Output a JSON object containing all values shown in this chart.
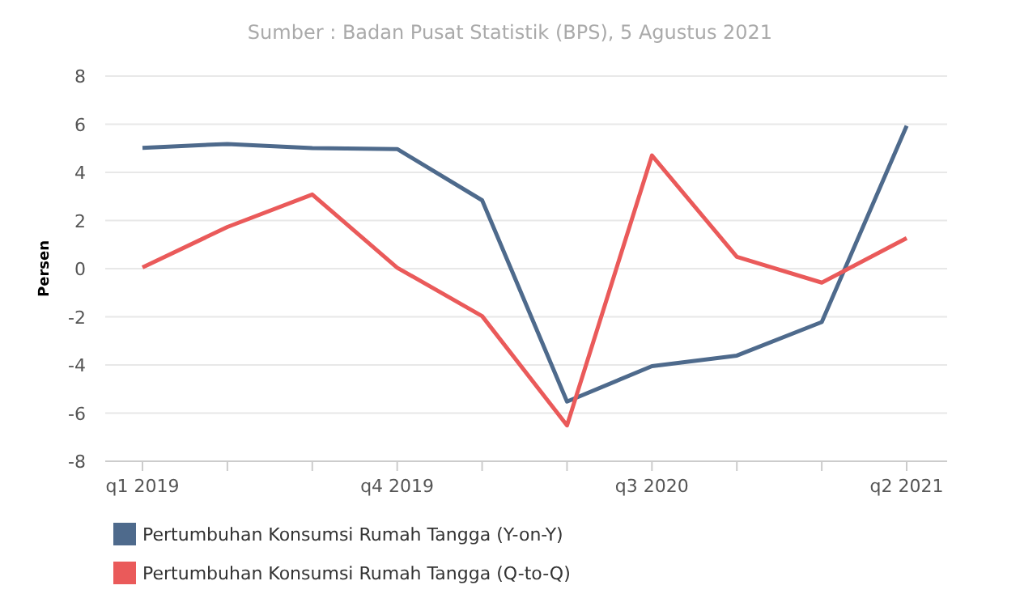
{
  "chart_data": {
    "type": "line",
    "subtitle": "Sumber : Badan Pusat Statistik (BPS), 5 Agustus 2021",
    "ylabel": "Persen",
    "categories": [
      "q1 2019",
      null,
      null,
      "q4 2019",
      null,
      null,
      "q3 2020",
      null,
      null,
      "q2 2021"
    ],
    "series": [
      {
        "name": "Pertumbuhan Konsumsi Rumah Tangga (Y-on-Y)",
        "color": "#4e6a8c",
        "values": [
          5.02,
          5.18,
          5.01,
          4.97,
          2.84,
          -5.52,
          -4.05,
          -3.61,
          -2.22,
          5.93
        ]
      },
      {
        "name": "Pertumbuhan Konsumsi Rumah Tangga (Q-to-Q)",
        "color": "#ea5a5a",
        "values": [
          0.05,
          1.73,
          3.08,
          0.04,
          -1.97,
          -6.51,
          4.7,
          0.49,
          -0.58,
          1.27
        ]
      }
    ],
    "ylim": [
      -8,
      8
    ],
    "yticks": [
      -8,
      -6,
      -4,
      -2,
      0,
      2,
      4,
      6,
      8
    ],
    "grid": "y",
    "legend": "bottom left",
    "marker": "none",
    "line_style": "solid"
  }
}
